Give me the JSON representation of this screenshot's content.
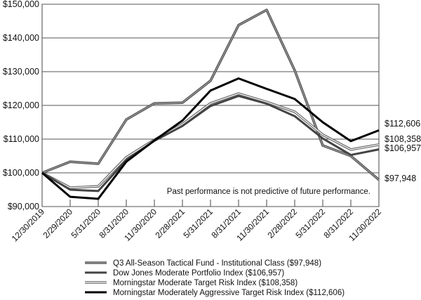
{
  "chart_data": {
    "type": "line",
    "title": "",
    "xlabel": "",
    "ylabel": "",
    "ylim": [
      90000,
      150000
    ],
    "yticks": [
      90000,
      100000,
      110000,
      120000,
      130000,
      140000,
      150000
    ],
    "ytick_labels": [
      "$90,000",
      "$100,000",
      "$110,000",
      "$120,000",
      "$130,000",
      "$140,000",
      "$150,000"
    ],
    "grid": true,
    "categories": [
      "12/30/2019",
      "2/29/2020",
      "5/31/2020",
      "8/31/2020",
      "11/30/2020",
      "2/28/2021",
      "5/31/2021",
      "8/31/2021",
      "11/30/2021",
      "2/28/2022",
      "5/31/2022",
      "8/31/2022",
      "11/30/2022"
    ],
    "annotation": "Past performance is not predictive of future performance.",
    "legend_position": "bottom",
    "series": [
      {
        "name": "Q3 All-Season Tactical Fund - Institutional Class ($97,948)",
        "end_label": "$97,948",
        "style": "double-dark",
        "values": [
          100000,
          103300,
          102700,
          115800,
          120600,
          120800,
          127300,
          143800,
          148300,
          130400,
          108100,
          105000,
          97948
        ]
      },
      {
        "name": "Dow Jones Moderate Portfolio Index ($106,957)",
        "end_label": "$106,957",
        "style": "dark",
        "values": [
          100000,
          95000,
          94600,
          103800,
          109500,
          113900,
          119800,
          122800,
          120500,
          116800,
          110200,
          105300,
          106957
        ]
      },
      {
        "name": "Morningstar Moderate Target Risk Index ($108,358)",
        "end_label": "$108,358",
        "style": "double-light",
        "values": [
          100000,
          95600,
          96000,
          104600,
          109800,
          114400,
          120600,
          123500,
          121000,
          118100,
          111300,
          106900,
          108358
        ]
      },
      {
        "name": "Morningstar Moderately Aggressive Target Risk Index ($112,606)",
        "end_label": "$112,606",
        "style": "black",
        "values": [
          100000,
          92900,
          92300,
          103300,
          109600,
          115500,
          124400,
          128000,
          124900,
          121900,
          115000,
          109400,
          112606
        ]
      }
    ]
  }
}
